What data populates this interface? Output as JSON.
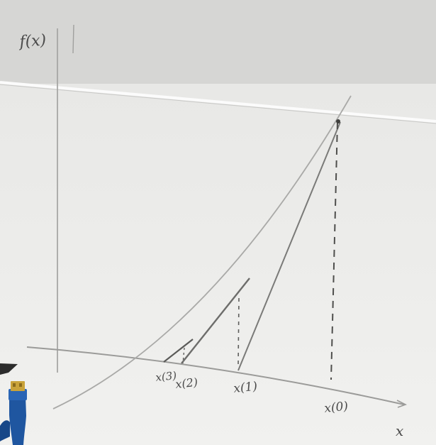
{
  "axes": {
    "y_label": "f(x)",
    "x_label": "x"
  },
  "iterates": [
    {
      "label": "x(0)"
    },
    {
      "label": "x(1)"
    },
    {
      "label": "x(2)"
    },
    {
      "label": "x(3)"
    }
  ],
  "colors": {
    "board": "#ececea",
    "ink": "#4a4a4a",
    "pencil": "#9a9a98",
    "usb_cable": "#1f56a0",
    "usb_plug": "#c9a33a"
  },
  "objects": {
    "usb_connector": "usb-plug-icon"
  }
}
